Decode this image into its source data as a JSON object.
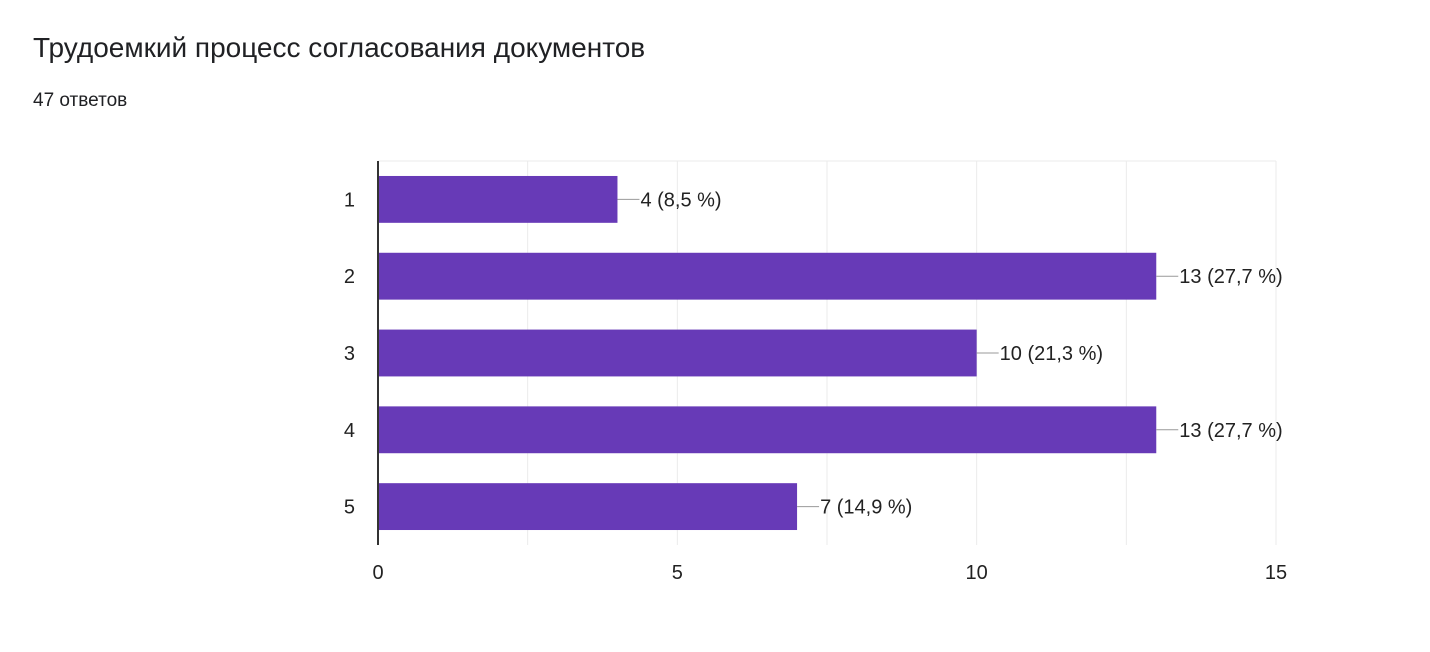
{
  "header": {
    "title": "Трудоемкий процесс согласования документов",
    "response_count": "47 ответов"
  },
  "chart_data": {
    "type": "bar",
    "orientation": "horizontal",
    "categories": [
      "1",
      "2",
      "3",
      "4",
      "5"
    ],
    "values": [
      4,
      13,
      10,
      13,
      7
    ],
    "data_labels": [
      "4 (8,5 %)",
      "13 (27,7 %)",
      "10 (21,3 %)",
      "13 (27,7 %)",
      "7 (14,9 %)"
    ],
    "xlim": [
      0,
      15
    ],
    "x_ticks": [
      0,
      5,
      10,
      15
    ],
    "x_tick_labels": [
      "0",
      "5",
      "10",
      "15"
    ],
    "grid": true,
    "bar_color": "#673ab7",
    "title": "",
    "xlabel": "",
    "ylabel": ""
  }
}
